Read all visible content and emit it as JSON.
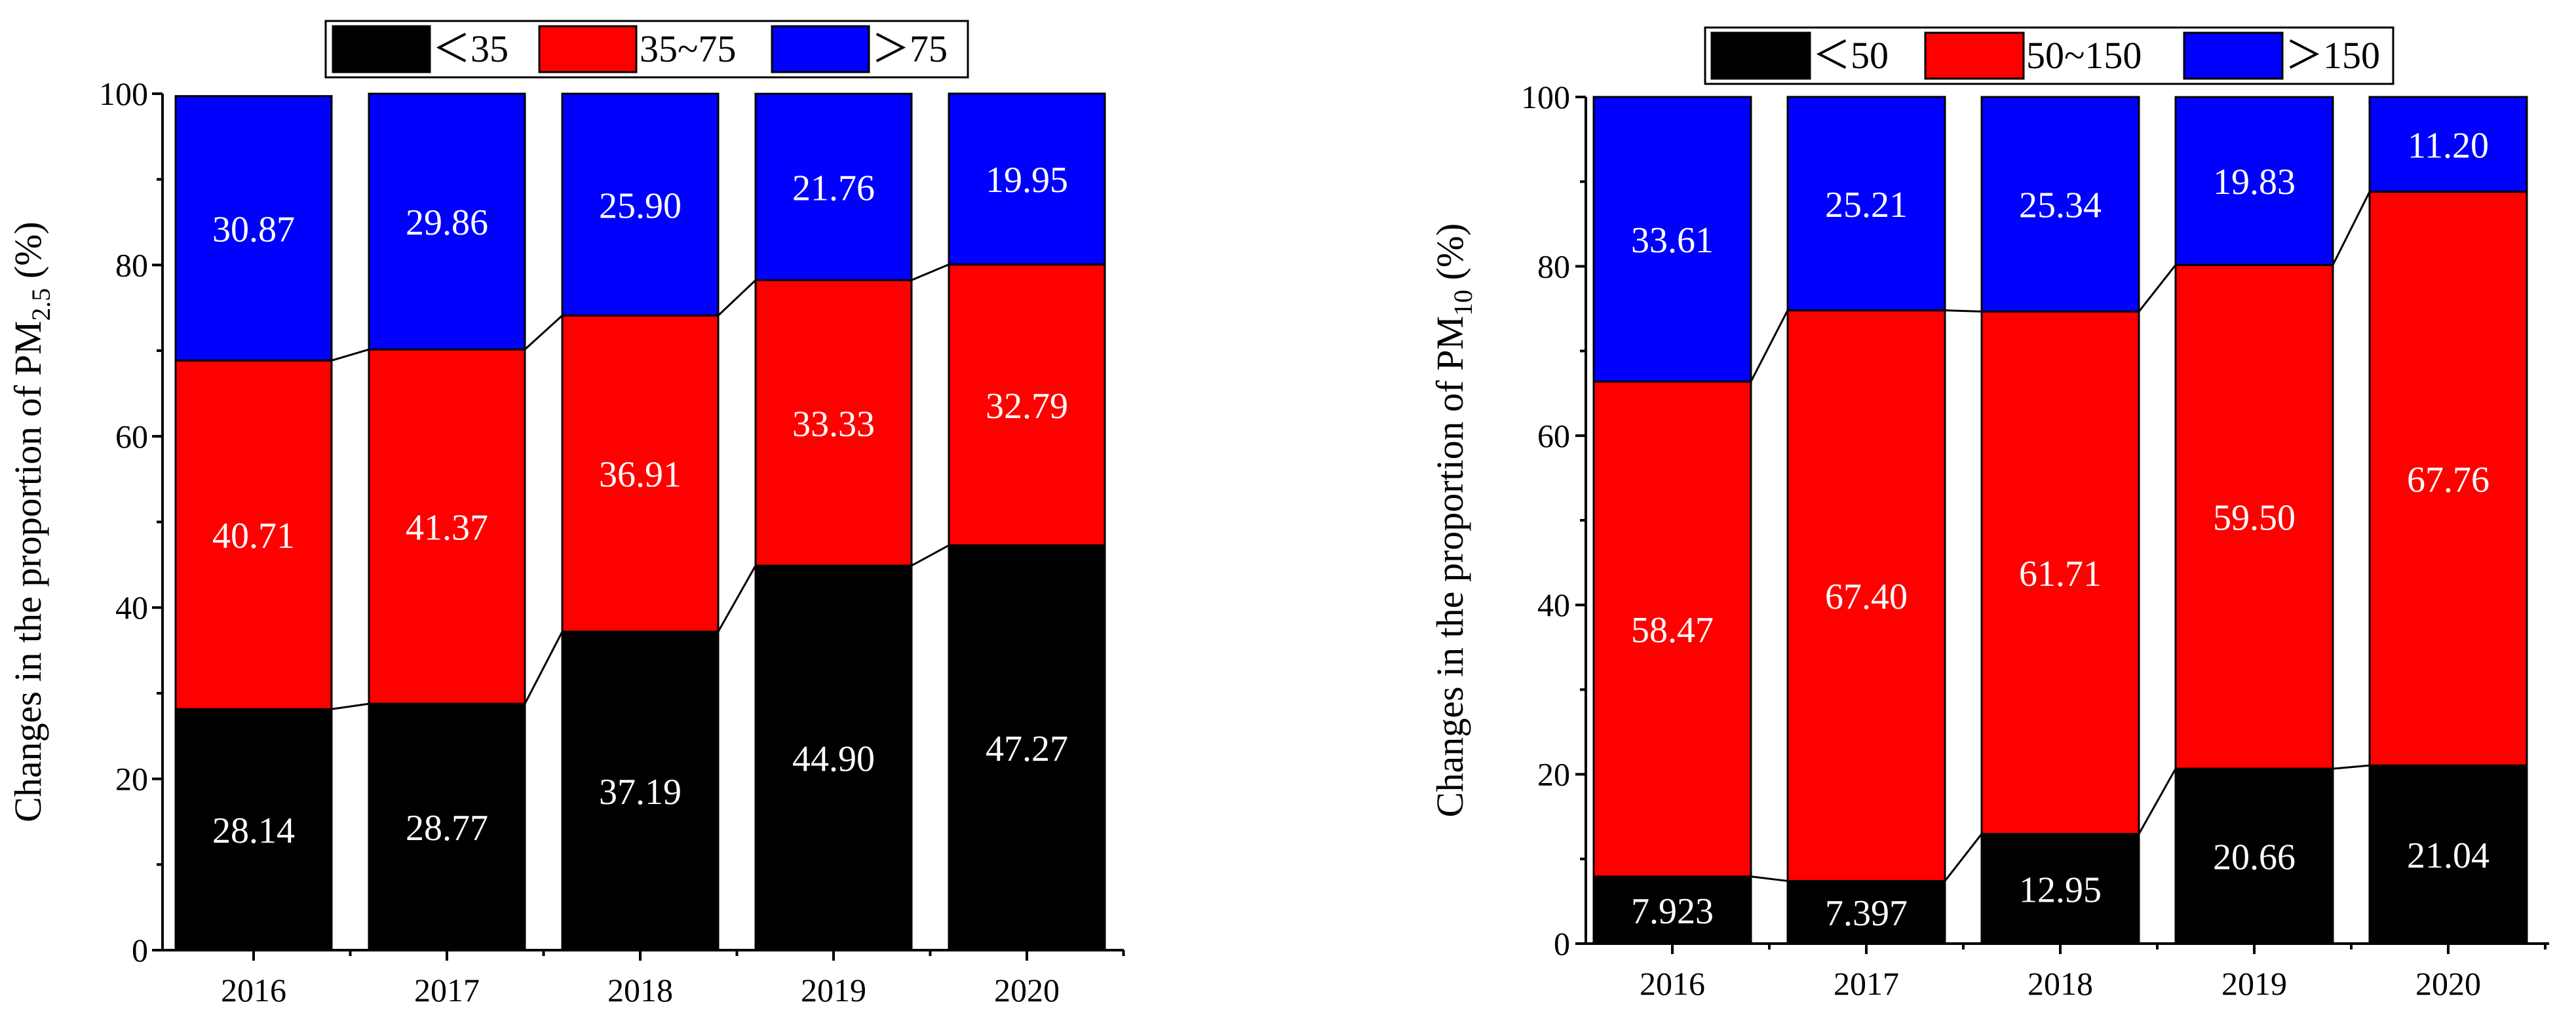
{
  "chart_data": [
    {
      "type": "bar",
      "stacked": true,
      "categories": [
        "2016",
        "2017",
        "2018",
        "2019",
        "2020"
      ],
      "ylabel": {
        "main": "Changes in the proportion of PM",
        "sub": "2.5",
        "suffix": " (%)"
      },
      "ylim": [
        0,
        100
      ],
      "yticks": [
        0,
        20,
        40,
        60,
        80,
        100
      ],
      "legend_position": "top-center",
      "series": [
        {
          "name": "＜35",
          "color": "#000000",
          "values": [
            28.14,
            28.77,
            37.19,
            44.9,
            47.27
          ],
          "labels": [
            "28.14",
            "28.77",
            "37.19",
            "44.90",
            "47.27"
          ]
        },
        {
          "name": "35~75",
          "color": "#ff0000",
          "values": [
            40.71,
            41.37,
            36.91,
            33.33,
            32.79
          ],
          "labels": [
            "40.71",
            "41.37",
            "36.91",
            "33.33",
            "32.79"
          ]
        },
        {
          "name": "＞75",
          "color": "#0000ff",
          "values": [
            30.87,
            29.86,
            25.9,
            21.76,
            19.95
          ],
          "labels": [
            "30.87",
            "29.86",
            "25.90",
            "21.76",
            "19.95"
          ]
        }
      ]
    },
    {
      "type": "bar",
      "stacked": true,
      "categories": [
        "2016",
        "2017",
        "2018",
        "2019",
        "2020"
      ],
      "ylabel": {
        "main": "Changes in the proportion of PM",
        "sub": "10",
        "suffix": " (%)"
      },
      "ylim": [
        0,
        100
      ],
      "yticks": [
        0,
        20,
        40,
        60,
        80,
        100
      ],
      "legend_position": "top-center",
      "series": [
        {
          "name": "＜50",
          "color": "#000000",
          "values": [
            7.923,
            7.397,
            12.95,
            20.66,
            21.04
          ],
          "labels": [
            "7.923",
            "7.397",
            "12.95",
            "20.66",
            "21.04"
          ]
        },
        {
          "name": "50~150",
          "color": "#ff0000",
          "values": [
            58.47,
            67.4,
            61.71,
            59.5,
            67.76
          ],
          "labels": [
            "58.47",
            "67.40",
            "61.71",
            "59.50",
            "67.76"
          ]
        },
        {
          "name": "＞150",
          "color": "#0000ff",
          "values": [
            33.61,
            25.21,
            25.34,
            19.83,
            11.2
          ],
          "labels": [
            "33.61",
            "25.21",
            "25.34",
            "19.83",
            "11.20"
          ]
        }
      ]
    }
  ]
}
